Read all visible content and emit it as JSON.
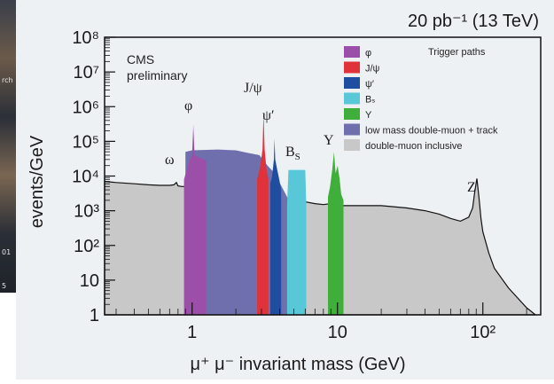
{
  "header": {
    "luminosity": "20 pb⁻¹ (13 TeV)"
  },
  "background_strip": {
    "fragments": [
      "rch",
      "01",
      "5"
    ]
  },
  "annotations": {
    "cms_line1": "CMS",
    "cms_line2": "preliminary",
    "trigger_paths": "Trigger paths"
  },
  "peaks": {
    "omega": "ω",
    "phi": "φ",
    "jpsi": "J/ψ",
    "psiprime": "ψ′",
    "bs": "B",
    "bs_sub": "S",
    "upsilon": "Υ",
    "z": "Z"
  },
  "colors": {
    "phi": "#9b4fa8",
    "jpsi": "#e0323a",
    "psiprime": "#1f4ea0",
    "bs": "#58c8d8",
    "upsilon": "#3fae3a",
    "lowmass": "#6f6fae",
    "inclusive": "#c8c8c8",
    "line": "#111111"
  },
  "chart_data": {
    "type": "area",
    "xlabel": "μ⁺ μ⁻ invariant mass (GeV)",
    "ylabel": "events/GeV",
    "xscale": "log",
    "yscale": "log",
    "xlim": [
      0.25,
      250
    ],
    "ylim": [
      1,
      100000000
    ],
    "xticks": [
      {
        "value": 1,
        "label": "1"
      },
      {
        "value": 10,
        "label": "10"
      },
      {
        "value": 100,
        "label": "10²"
      }
    ],
    "yticks": [
      {
        "value": 1,
        "label": "1"
      },
      {
        "value": 10,
        "label": "10"
      },
      {
        "value": 100,
        "label": "10²"
      },
      {
        "value": 1000,
        "label": "10³"
      },
      {
        "value": 10000,
        "label": "10⁴"
      },
      {
        "value": 100000,
        "label": "10⁵"
      },
      {
        "value": 1000000,
        "label": "10⁶"
      },
      {
        "value": 10000000,
        "label": "10⁷"
      },
      {
        "value": 100000000,
        "label": "10⁸"
      }
    ],
    "legend_position": "top-right",
    "legend": [
      {
        "key": "phi",
        "label": "φ"
      },
      {
        "key": "jpsi",
        "label": "J/ψ"
      },
      {
        "key": "psiprime",
        "label": "ψ′"
      },
      {
        "key": "bs",
        "label": "Bₛ"
      },
      {
        "key": "upsilon",
        "label": "Υ"
      },
      {
        "key": "lowmass",
        "label": "low mass double-muon + track"
      },
      {
        "key": "inclusive",
        "label": "double-muon inclusive"
      }
    ],
    "series": [
      {
        "key": "inclusive",
        "x": [
          0.25,
          0.3,
          0.4,
          0.5,
          0.6,
          0.7,
          0.75,
          0.78,
          0.8,
          0.85,
          0.9,
          0.95,
          1.0,
          1.02,
          1.05,
          1.2,
          1.5,
          2.0,
          2.5,
          3.0,
          3.05,
          3.1,
          3.15,
          3.3,
          3.6,
          3.69,
          3.75,
          4.0,
          5.0,
          6.0,
          7.0,
          8.0,
          9.0,
          9.4,
          9.6,
          10.0,
          10.4,
          11,
          12,
          15,
          20,
          30,
          40,
          50,
          60,
          70,
          80,
          85,
          88,
          91,
          94,
          97,
          100,
          110,
          120,
          150,
          200,
          230
        ],
        "y": [
          7000,
          6500,
          6000,
          5600,
          5400,
          5400,
          5600,
          6500,
          5200,
          5000,
          5000,
          5000,
          5500,
          7000,
          5000,
          4700,
          4200,
          3800,
          3400,
          3400,
          7000,
          30000,
          5000,
          3000,
          2800,
          6000,
          2700,
          2500,
          2200,
          1800,
          1600,
          1500,
          1600,
          3500,
          2000,
          2800,
          1500,
          1400,
          1400,
          1400,
          1400,
          1200,
          1000,
          800,
          600,
          500,
          650,
          1200,
          3500,
          8500,
          2500,
          600,
          250,
          60,
          22,
          6,
          1.6,
          1
        ]
      },
      {
        "key": "lowmass",
        "x": [
          0.9,
          1.0,
          1.5,
          2.0,
          2.5,
          2.9,
          3.3,
          3.7,
          4.5,
          5.0
        ],
        "y": [
          50000,
          55000,
          58000,
          55000,
          45000,
          40000,
          20000,
          12000,
          2500,
          1200
        ]
      },
      {
        "key": "phi",
        "x": [
          0.88,
          0.95,
          1.0,
          1.02,
          1.04,
          1.1,
          1.2,
          1.25
        ],
        "y": [
          8000,
          25000,
          40000,
          300000,
          40000,
          35000,
          30000,
          28000
        ]
      },
      {
        "key": "jpsi",
        "x": [
          2.8,
          2.95,
          3.05,
          3.1,
          3.15,
          3.25,
          3.35
        ],
        "y": [
          8000,
          20000,
          60000,
          700000,
          60000,
          15000,
          8000
        ]
      },
      {
        "key": "psiprime",
        "x": [
          3.45,
          3.55,
          3.65,
          3.69,
          3.73,
          3.85,
          4.0,
          4.1
        ],
        "y": [
          6000,
          10000,
          30000,
          120000,
          30000,
          15000,
          7000,
          4000
        ]
      },
      {
        "key": "bs",
        "x": [
          4.5,
          4.6,
          6.0,
          6.1
        ],
        "y": [
          1500,
          15000,
          15000,
          1500
        ]
      },
      {
        "key": "upsilon",
        "x": [
          8.6,
          8.9,
          9.2,
          9.46,
          9.7,
          10.02,
          10.35,
          10.6,
          11.0
        ],
        "y": [
          2500,
          5000,
          15000,
          50000,
          12000,
          20000,
          8000,
          3000,
          2000
        ]
      }
    ]
  }
}
